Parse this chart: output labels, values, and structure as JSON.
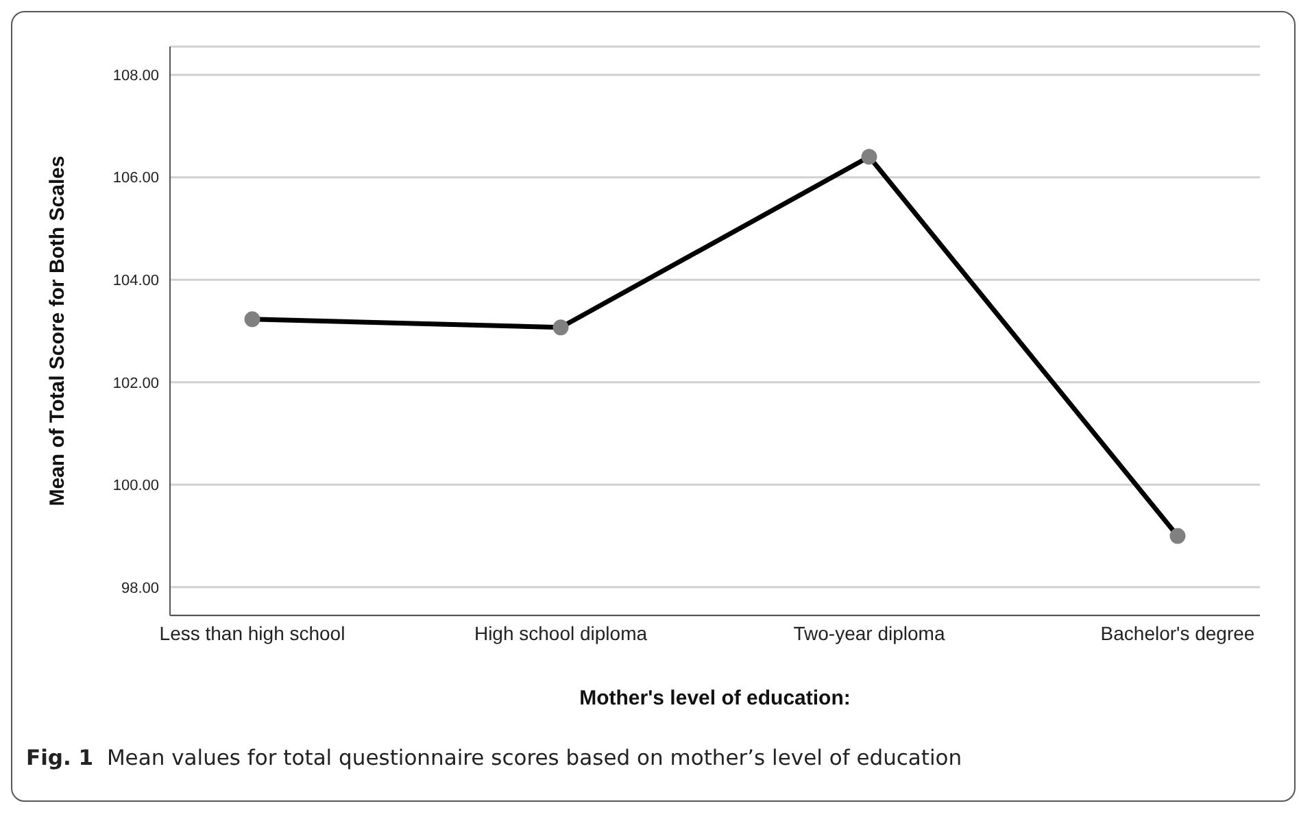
{
  "chart_data": {
    "type": "line",
    "xlabel": "Mother's level of education:",
    "ylabel": "Mean of Total Score for Both Scales",
    "categories": [
      "Less than high school",
      "High school diploma",
      "Two-year diploma",
      "Bachelor's degree"
    ],
    "series": [
      {
        "color": "#000000",
        "values": [
          103.23,
          103.07,
          106.4,
          99.0
        ]
      }
    ],
    "ylim": [
      97.45,
      108.55
    ],
    "yticks": [
      {
        "value": 98,
        "label": "98.00"
      },
      {
        "value": 100,
        "label": "100.00"
      },
      {
        "value": 102,
        "label": "102.00"
      },
      {
        "value": 104,
        "label": "104.00"
      },
      {
        "value": 106,
        "label": "106.00"
      },
      {
        "value": 108,
        "label": "108.00"
      }
    ],
    "grid": "y",
    "marker": "circle",
    "line_style": "solid",
    "legend": false,
    "annotations": [
      "Fig. 1  Mean values for total questionnaire scores based on mother’s level of education"
    ]
  }
}
